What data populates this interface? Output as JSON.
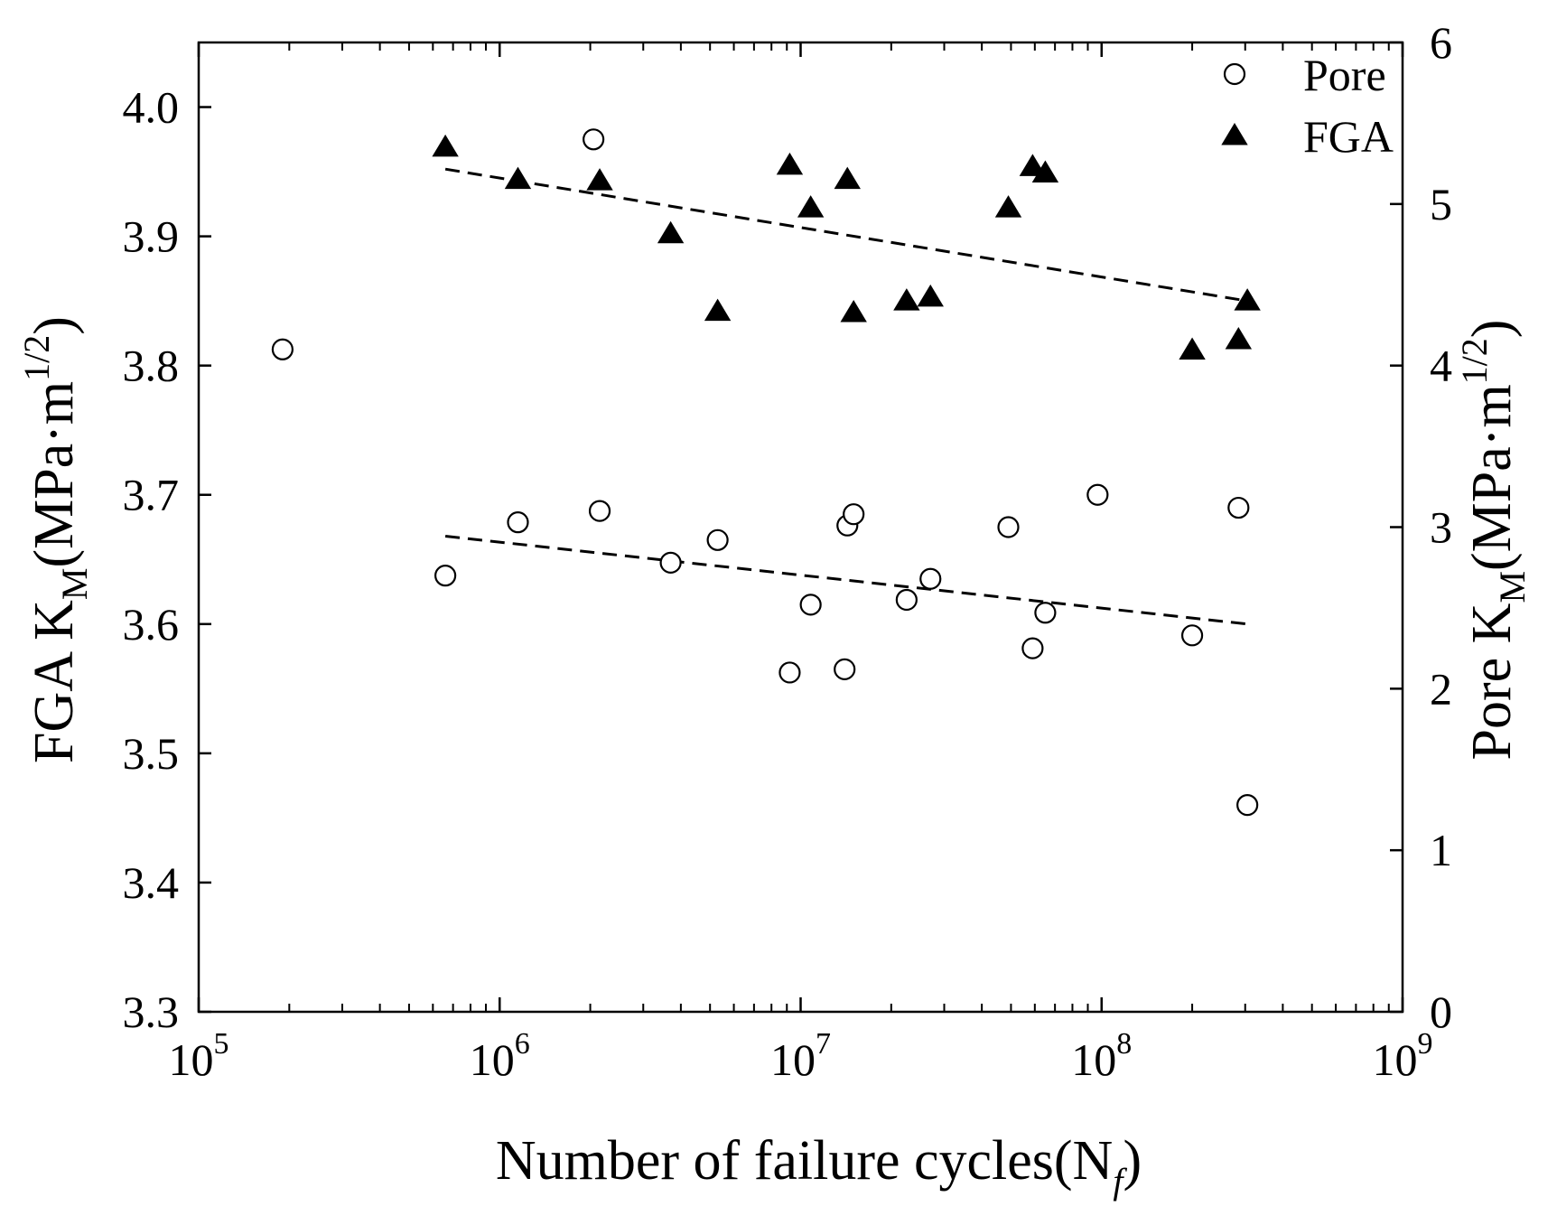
{
  "chart_data": {
    "type": "scatter",
    "title": "",
    "xlabel": {
      "main": "Number of failure cycles(N",
      "subscript": "f",
      "end": ")"
    },
    "ylabel_left": {
      "main": "FGA K",
      "subscript": "M",
      "mid": "(MPa·m",
      "superscript": "1/2",
      "end": ")"
    },
    "ylabel_right": {
      "main": "Pore K",
      "subscript": "M",
      "mid": "(MPa·m",
      "superscript": "1/2",
      "end": ")"
    },
    "x_scale": "log",
    "xlim": [
      100000,
      1000000000
    ],
    "ylim_left": [
      3.3,
      4.05
    ],
    "ylim_right": [
      0,
      6
    ],
    "x_ticks": [
      {
        "value": 100000,
        "base": "10",
        "exp": "5"
      },
      {
        "value": 1000000,
        "base": "10",
        "exp": "6"
      },
      {
        "value": 10000000,
        "base": "10",
        "exp": "7"
      },
      {
        "value": 100000000,
        "base": "10",
        "exp": "8"
      },
      {
        "value": 1000000000,
        "base": "10",
        "exp": "9"
      }
    ],
    "y_left_ticks": [
      "3.3",
      "3.4",
      "3.5",
      "3.6",
      "3.7",
      "3.8",
      "3.9",
      "4.0"
    ],
    "y_right_ticks": [
      "0",
      "1",
      "2",
      "3",
      "4",
      "5",
      "6"
    ],
    "legend": {
      "position": "top-right",
      "entries": [
        {
          "label": "Pore",
          "marker": "open-circle"
        },
        {
          "label": "FGA",
          "marker": "filled-triangle"
        }
      ]
    },
    "series": [
      {
        "name": "Pore",
        "axis": "right",
        "marker": "open-circle",
        "points": [
          [
            190000,
            4.1
          ],
          [
            660000,
            2.7
          ],
          [
            1150000,
            3.03
          ],
          [
            2050000,
            5.4
          ],
          [
            2150000,
            3.1
          ],
          [
            3700000,
            2.78
          ],
          [
            5300000,
            2.92
          ],
          [
            9200000,
            2.1
          ],
          [
            10800000,
            2.52
          ],
          [
            14000000,
            2.12
          ],
          [
            14300000,
            3.01
          ],
          [
            15000000,
            3.08
          ],
          [
            22500000,
            2.55
          ],
          [
            27000000,
            2.68
          ],
          [
            49000000,
            3.0
          ],
          [
            59000000,
            2.25
          ],
          [
            65000000,
            2.47
          ],
          [
            97000000,
            3.2
          ],
          [
            200000000,
            2.33
          ],
          [
            285000000,
            3.12
          ],
          [
            305000000,
            1.28
          ]
        ]
      },
      {
        "name": "FGA",
        "axis": "left",
        "marker": "filled-triangle",
        "points": [
          [
            660000,
            3.969
          ],
          [
            1150000,
            3.944
          ],
          [
            2150000,
            3.943
          ],
          [
            3700000,
            3.902
          ],
          [
            5300000,
            3.842
          ],
          [
            9200000,
            3.955
          ],
          [
            10800000,
            3.922
          ],
          [
            14300000,
            3.944
          ],
          [
            15000000,
            3.841
          ],
          [
            22500000,
            3.85
          ],
          [
            27000000,
            3.853
          ],
          [
            49000000,
            3.922
          ],
          [
            59000000,
            3.954
          ],
          [
            65000000,
            3.949
          ],
          [
            200000000,
            3.812
          ],
          [
            285000000,
            3.82
          ],
          [
            305000000,
            3.85
          ]
        ]
      }
    ],
    "trend_lines": [
      {
        "name": "FGA trend",
        "axis": "left",
        "style": "dashed",
        "from": [
          660000,
          3.952
        ],
        "to": [
          305000000,
          3.85
        ]
      },
      {
        "name": "Pore trend",
        "axis": "left",
        "style": "dashed",
        "from": [
          660000,
          3.668
        ],
        "to": [
          305000000,
          3.6
        ]
      }
    ],
    "colors": {
      "axis": "#000000",
      "marker": "#000000",
      "background": "#ffffff"
    }
  }
}
